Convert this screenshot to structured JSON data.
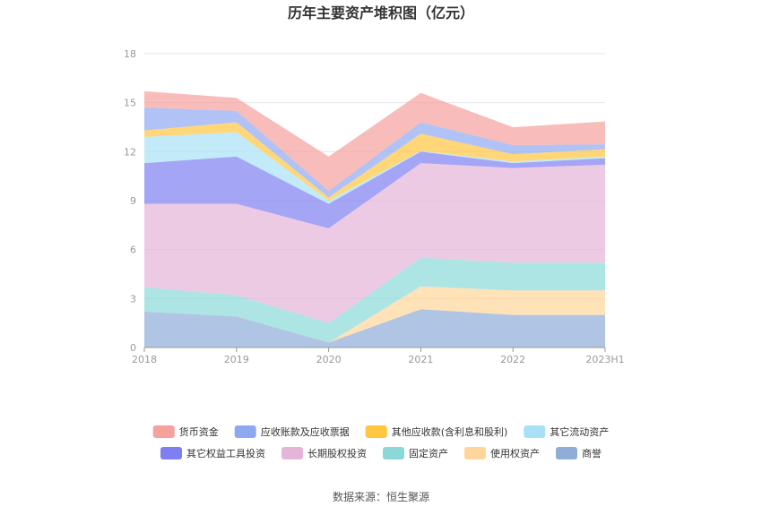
{
  "chart_data": {
    "type": "area",
    "stacked": true,
    "title": "历年主要资产堆积图（亿元）",
    "categories": [
      "2018",
      "2019",
      "2020",
      "2021",
      "2022",
      "2023H1"
    ],
    "ylim": [
      0,
      18
    ],
    "yticks": [
      "0",
      "3",
      "6",
      "9",
      "12",
      "15",
      "18"
    ],
    "grid": true,
    "legend_position": "bottom",
    "source": "数据来源：恒生聚源",
    "series": [
      {
        "name": "商誉",
        "color": "#8fadd9",
        "values": [
          2.2,
          1.9,
          0.3,
          2.35,
          2.0,
          2.0
        ]
      },
      {
        "name": "使用权资产",
        "color": "#ffd699",
        "values": [
          0.0,
          0.0,
          0.0,
          1.4,
          1.5,
          1.5
        ]
      },
      {
        "name": "固定资产",
        "color": "#8ad8d8",
        "values": [
          1.5,
          1.3,
          1.2,
          1.75,
          1.7,
          1.7
        ]
      },
      {
        "name": "长期股权投资",
        "color": "#e6b3d9",
        "values": [
          5.1,
          5.6,
          5.8,
          5.8,
          5.8,
          6.0
        ]
      },
      {
        "name": "其它权益工具投资",
        "color": "#7f7ff2",
        "values": [
          2.5,
          2.9,
          1.5,
          0.7,
          0.3,
          0.4
        ]
      },
      {
        "name": "其它流动资产",
        "color": "#a8e1f7",
        "values": [
          1.6,
          1.5,
          0.2,
          0.05,
          0.1,
          0.1
        ]
      },
      {
        "name": "其他应收款(含利息和股利)",
        "color": "#ffc640",
        "values": [
          0.4,
          0.6,
          0.2,
          1.05,
          0.45,
          0.45
        ]
      },
      {
        "name": "应收账款及应收票据",
        "color": "#8fa8f2",
        "values": [
          1.4,
          0.7,
          0.4,
          0.7,
          0.55,
          0.3
        ]
      },
      {
        "name": "货币资金",
        "color": "#f5a19c",
        "values": [
          1.0,
          0.8,
          2.1,
          1.8,
          1.1,
          1.4
        ]
      }
    ]
  }
}
